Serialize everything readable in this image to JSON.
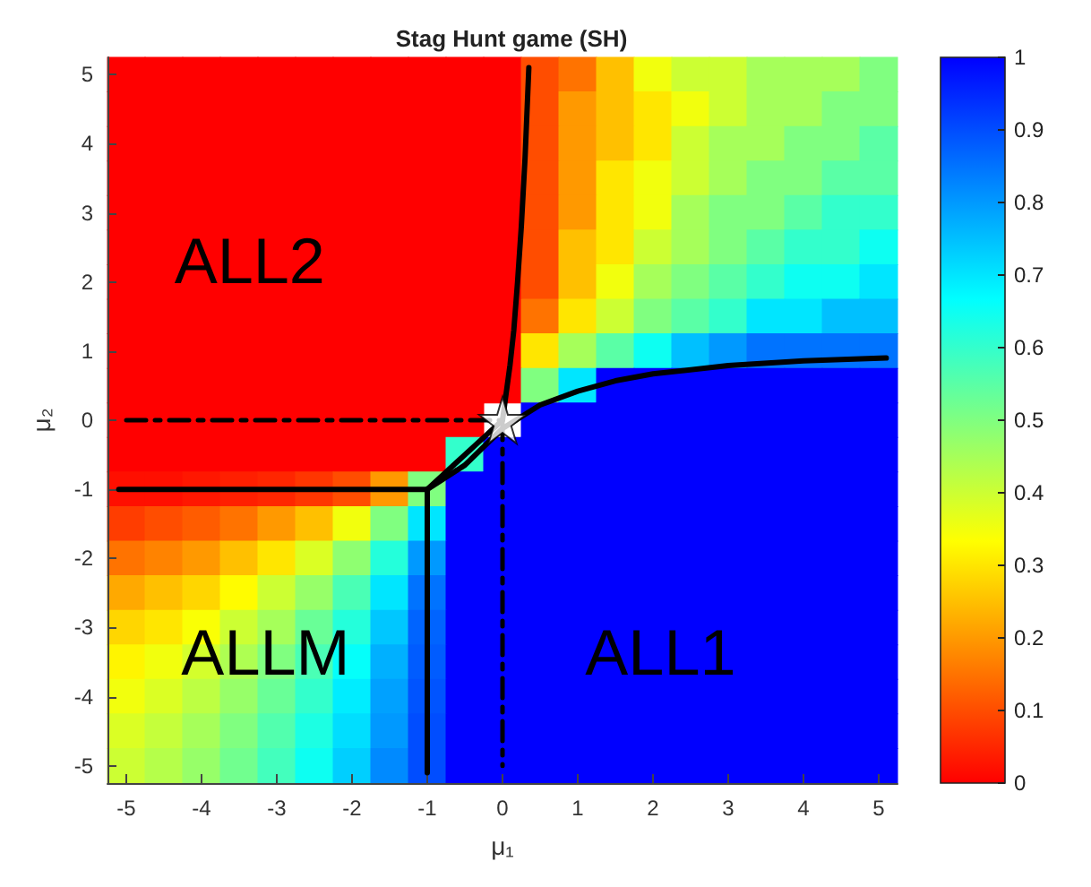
{
  "chart_data": [
    {
      "type": "heatmap",
      "title": "Stag Hunt game (SH)",
      "categories": [
        null,
        null,
        null,
        null,
        null,
        null,
        null,
        null,
        null,
        null,
        null,
        null,
        null,
        null,
        null,
        null,
        null,
        null,
        null,
        null,
        null
      ],
      "y_categories": [
        null,
        null,
        null,
        null,
        null,
        null,
        null,
        null,
        null,
        null,
        null,
        null,
        null,
        null,
        null,
        null,
        null,
        null,
        null,
        null,
        null
      ],
      "cells": [
        [
          0,
          0,
          0,
          0,
          0,
          0,
          0,
          0,
          0,
          0,
          0,
          0.1,
          0.15,
          0.25,
          0.35,
          0.4,
          0.4,
          0.45,
          0.45,
          0.45,
          0.5
        ],
        [
          0,
          0,
          0,
          0,
          0,
          0,
          0,
          0,
          0,
          0,
          0,
          0.1,
          0.2,
          0.25,
          0.3,
          0.35,
          0.4,
          0.45,
          0.45,
          0.5,
          0.5
        ],
        [
          0,
          0,
          0,
          0,
          0,
          0,
          0,
          0,
          0,
          0,
          0,
          0.1,
          0.2,
          0.25,
          0.3,
          0.4,
          0.45,
          0.45,
          0.5,
          0.5,
          0.55
        ],
        [
          0,
          0,
          0,
          0,
          0,
          0,
          0,
          0,
          0,
          0,
          0,
          0.1,
          0.2,
          0.3,
          0.35,
          0.4,
          0.45,
          0.5,
          0.5,
          0.55,
          0.55
        ],
        [
          0,
          0,
          0,
          0,
          0,
          0,
          0,
          0,
          0,
          0,
          0,
          0.1,
          0.2,
          0.3,
          0.35,
          0.45,
          0.5,
          0.5,
          0.55,
          0.6,
          0.6
        ],
        [
          0,
          0,
          0,
          0,
          0,
          0,
          0,
          0,
          0,
          0,
          0,
          0.1,
          0.25,
          0.3,
          0.4,
          0.45,
          0.5,
          0.55,
          0.6,
          0.6,
          0.65
        ],
        [
          0,
          0,
          0,
          0,
          0,
          0,
          0,
          0,
          0,
          0,
          0,
          0.1,
          0.25,
          0.35,
          0.45,
          0.5,
          0.55,
          0.6,
          0.65,
          0.65,
          0.7
        ],
        [
          0,
          0,
          0,
          0,
          0,
          0,
          0,
          0,
          0,
          0,
          0,
          0.15,
          0.3,
          0.4,
          0.5,
          0.55,
          0.6,
          0.7,
          0.7,
          0.75,
          0.75
        ],
        [
          0,
          0,
          0,
          0,
          0,
          0,
          0,
          0,
          0,
          0,
          0,
          0.3,
          0.45,
          0.55,
          0.65,
          0.75,
          0.8,
          0.85,
          0.85,
          0.85,
          0.85
        ],
        [
          0,
          0,
          0,
          0,
          0,
          0,
          0,
          0,
          0,
          0,
          0,
          0.5,
          0.7,
          1,
          1,
          1,
          1,
          1,
          1,
          1,
          1
        ],
        [
          0,
          0,
          0,
          0,
          0,
          0,
          0,
          0,
          0,
          0,
          null,
          1,
          1,
          1,
          1,
          1,
          1,
          1,
          1,
          1,
          1
        ],
        [
          0,
          0,
          0,
          0,
          0,
          0,
          0,
          0,
          0,
          0.6,
          1,
          1,
          1,
          1,
          1,
          1,
          1,
          1,
          1,
          1,
          1
        ],
        [
          0.02,
          0.02,
          0.03,
          0.04,
          0.05,
          0.07,
          0.1,
          0.2,
          0.5,
          1,
          1,
          1,
          1,
          1,
          1,
          1,
          1,
          1,
          1,
          1,
          1
        ],
        [
          0.08,
          0.1,
          0.12,
          0.15,
          0.2,
          0.25,
          0.35,
          0.5,
          0.7,
          1,
          1,
          1,
          1,
          1,
          1,
          1,
          1,
          1,
          1,
          1,
          1
        ],
        [
          0.15,
          0.17,
          0.2,
          0.25,
          0.3,
          0.38,
          0.48,
          0.62,
          0.8,
          1,
          1,
          1,
          1,
          1,
          1,
          1,
          1,
          1,
          1,
          1,
          1
        ],
        [
          0.22,
          0.25,
          0.28,
          0.33,
          0.4,
          0.47,
          0.57,
          0.7,
          0.85,
          1,
          1,
          1,
          1,
          1,
          1,
          1,
          1,
          1,
          1,
          1,
          1
        ],
        [
          0.28,
          0.3,
          0.34,
          0.4,
          0.45,
          0.53,
          0.62,
          0.74,
          0.87,
          1,
          1,
          1,
          1,
          1,
          1,
          1,
          1,
          1,
          1,
          1,
          1
        ],
        [
          0.32,
          0.35,
          0.39,
          0.44,
          0.5,
          0.57,
          0.66,
          0.77,
          0.88,
          1,
          1,
          1,
          1,
          1,
          1,
          1,
          1,
          1,
          1,
          1,
          1
        ],
        [
          0.35,
          0.38,
          0.42,
          0.47,
          0.53,
          0.6,
          0.69,
          0.79,
          0.89,
          1,
          1,
          1,
          1,
          1,
          1,
          1,
          1,
          1,
          1,
          1,
          1
        ],
        [
          0.38,
          0.41,
          0.45,
          0.5,
          0.56,
          0.63,
          0.71,
          0.8,
          0.9,
          1,
          1,
          1,
          1,
          1,
          1,
          1,
          1,
          1,
          1,
          1,
          1
        ],
        [
          0.4,
          0.43,
          0.47,
          0.52,
          0.58,
          0.65,
          0.73,
          0.82,
          0.9,
          1,
          1,
          1,
          1,
          1,
          1,
          1,
          1,
          1,
          1,
          1,
          1
        ]
      ],
      "clim": [
        0,
        1
      ],
      "cticks": [
        0,
        0.1,
        0.2,
        0.3,
        0.4,
        0.5,
        0.6,
        0.7,
        0.8,
        0.9,
        1
      ]
    },
    {
      "type": "line",
      "xlabel": "μ₁",
      "ylabel": "μ₂",
      "xlim": [
        -5.25,
        5.25
      ],
      "ylim": [
        -5.25,
        5.25
      ],
      "xticks": [
        -5,
        -4,
        -3,
        -2,
        -1,
        0,
        1,
        2,
        3,
        4,
        5
      ],
      "yticks": [
        -5,
        -4,
        -3,
        -2,
        -1,
        0,
        1,
        2,
        3,
        4,
        5
      ],
      "series": [
        {
          "color": "#000000",
          "line_style": "solid",
          "x": [
            -1,
            -0.6,
            -0.3,
            0,
            0.05,
            0.1,
            0.15,
            0.2,
            0.25,
            0.3,
            0.35
          ],
          "values": [
            -1,
            -0.6,
            -0.3,
            0,
            0.4,
            0.8,
            1.3,
            2,
            2.8,
            3.8,
            5.1
          ]
        },
        {
          "color": "#000000",
          "line_style": "solid",
          "x": [
            -1,
            -0.5,
            0,
            0.5,
            1,
            1.5,
            2,
            3,
            4,
            5.1
          ],
          "values": [
            -1,
            -0.65,
            -0.12,
            0.22,
            0.42,
            0.57,
            0.67,
            0.79,
            0.86,
            0.9
          ]
        },
        {
          "color": "#000000",
          "line_style": "solid",
          "x": [
            -5.1,
            -1
          ],
          "values": [
            -1,
            -1
          ]
        },
        {
          "color": "#000000",
          "line_style": "solid",
          "x": [
            -1,
            -1
          ],
          "values": [
            -1,
            -5.1
          ]
        },
        {
          "color": "#000000",
          "line_style": "dashed",
          "x": [
            -5,
            0
          ],
          "values": [
            0,
            0
          ]
        },
        {
          "color": "#000000",
          "line_style": "dashed",
          "x": [
            0,
            0
          ],
          "values": [
            0,
            -5
          ]
        },
        {
          "type": "scatter",
          "color": "#ffffff",
          "marker": "star",
          "x": [
            0
          ],
          "values": [
            0
          ]
        }
      ],
      "annotations": [
        "ALL2",
        "ALLM",
        "ALL1"
      ]
    }
  ]
}
